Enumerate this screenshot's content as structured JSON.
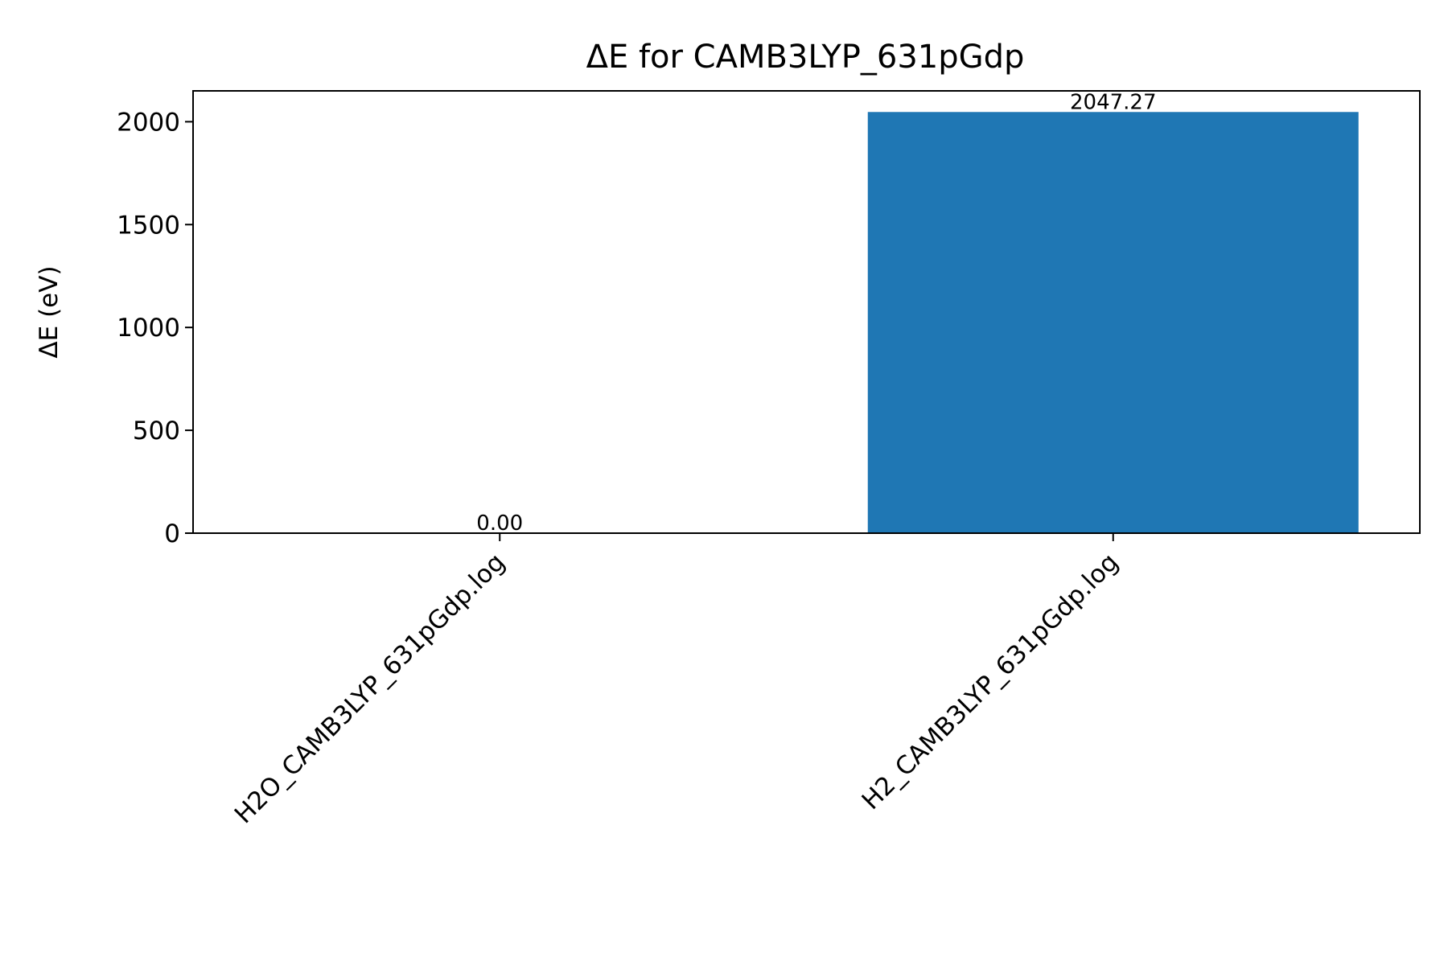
{
  "chart_data": {
    "type": "bar",
    "title": "ΔE for CAMB3LYP_631pGdp",
    "xlabel": "",
    "ylabel": "ΔE (eV)",
    "categories": [
      "H2O_CAMB3LYP_631pGdp.log",
      "H2_CAMB3LYP_631pGdp.log"
    ],
    "values": [
      0.0,
      2047.27
    ],
    "data_labels": [
      "0.00",
      "2047.27"
    ],
    "ylim": [
      0,
      2150
    ],
    "yticks": [
      0,
      500,
      1000,
      1500,
      2000
    ],
    "ytick_labels": [
      "0",
      "500",
      "1000",
      "1500",
      "2000"
    ],
    "grid": false,
    "legend": "none",
    "colors": {
      "bar": "#1f77b4",
      "axes": "#000000",
      "background": "#ffffff"
    }
  }
}
